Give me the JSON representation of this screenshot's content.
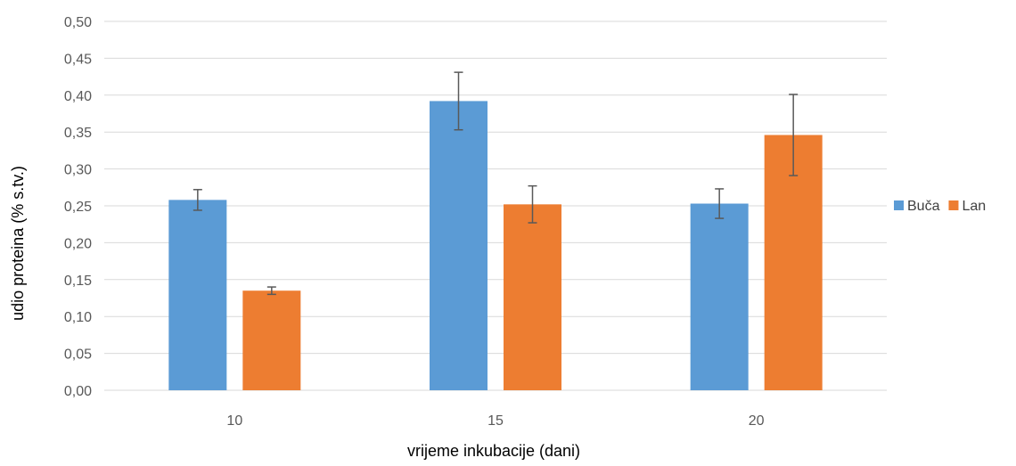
{
  "chart_data": {
    "type": "bar",
    "categories": [
      "10",
      "15",
      "20"
    ],
    "series": [
      {
        "name": "Buča",
        "values": [
          0.258,
          0.392,
          0.253
        ],
        "errors": [
          0.014,
          0.039,
          0.02
        ],
        "color": "#5B9BD5"
      },
      {
        "name": "Lan",
        "values": [
          0.135,
          0.252,
          0.346
        ],
        "errors": [
          0.005,
          0.025,
          0.055
        ],
        "color": "#ED7D31"
      }
    ],
    "xlabel": "vrijeme inkubacije (dani)",
    "ylabel": "udio proteina (% s.tv.)",
    "ylim": [
      0,
      0.5
    ],
    "yticks": [
      "0,00",
      "0,05",
      "0,10",
      "0,15",
      "0,20",
      "0,25",
      "0,30",
      "0,35",
      "0,40",
      "0,45",
      "0,50"
    ],
    "grid": true,
    "legend_position": "right"
  }
}
